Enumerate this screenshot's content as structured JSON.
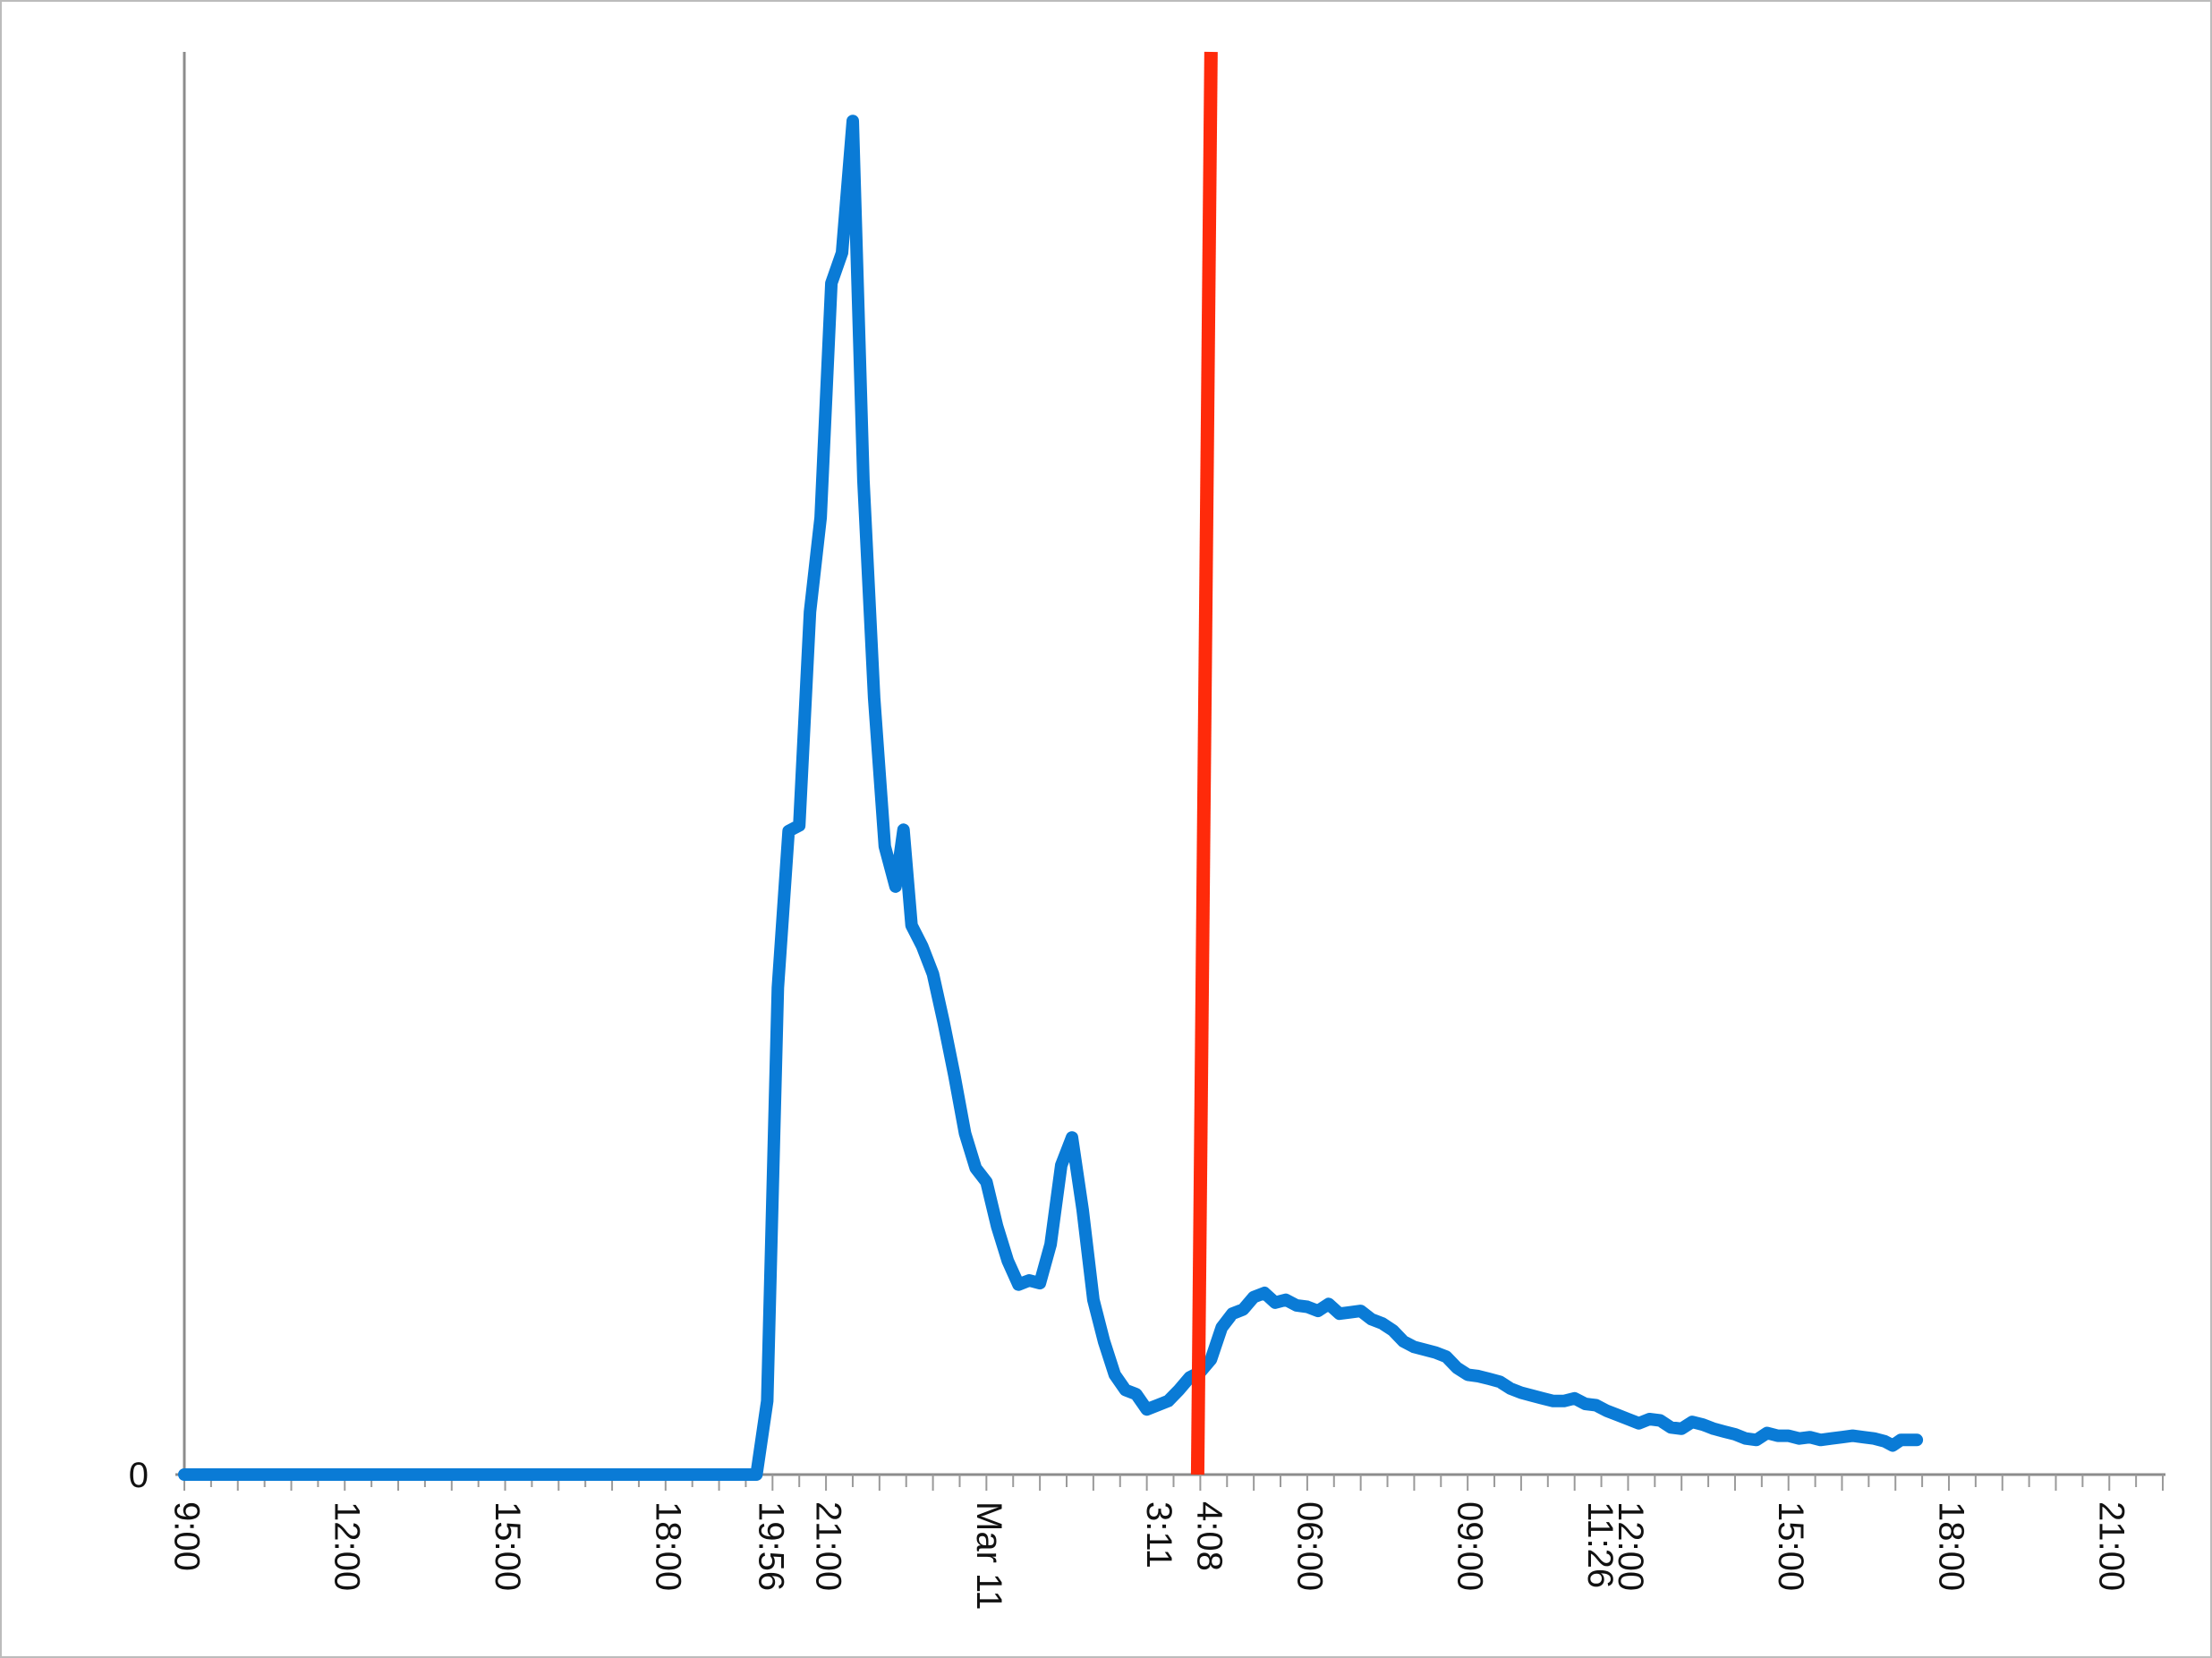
{
  "chart_data": {
    "type": "line",
    "title": "",
    "xlabel": "",
    "ylabel": "",
    "ylim": [
      0,
      100
    ],
    "grid": false,
    "legend": "none",
    "y_tick_labels": [
      "0"
    ],
    "x_tick_labels": [
      {
        "label": "9:00",
        "x": 0
      },
      {
        "label": "12:00",
        "x": 3
      },
      {
        "label": "15:00",
        "x": 6
      },
      {
        "label": "18:00",
        "x": 9
      },
      {
        "label": "19:56",
        "x": 10.93
      },
      {
        "label": "21:00",
        "x": 12
      },
      {
        "label": "Mar 11",
        "x": 15
      },
      {
        "label": "3:11",
        "x": 18.18
      },
      {
        "label": "4:08",
        "x": 19.13
      },
      {
        "label": "06:00",
        "x": 21
      },
      {
        "label": "09:00",
        "x": 24
      },
      {
        "label": "11:26",
        "x": 26.43
      },
      {
        "label": "12:00",
        "x": 27
      },
      {
        "label": "15:00",
        "x": 30
      },
      {
        "label": "18:00",
        "x": 33
      },
      {
        "label": "21:00",
        "x": 36
      }
    ],
    "xlim": [
      0,
      37.05
    ],
    "marker_line": {
      "x_top": 19.2,
      "x_bottom": 18.95,
      "color": "#ff2a0a"
    },
    "series": [
      {
        "color": "#0a7bd6",
        "points": [
          [
            0,
            0
          ],
          [
            10.7,
            0
          ],
          [
            10.9,
            5.3
          ],
          [
            11.1,
            35.1
          ],
          [
            11.3,
            46.4
          ],
          [
            11.5,
            46.8
          ],
          [
            11.7,
            62.2
          ],
          [
            11.9,
            69
          ],
          [
            12.1,
            85.9
          ],
          [
            12.3,
            88.1
          ],
          [
            12.5,
            97.6
          ],
          [
            12.7,
            71.7
          ],
          [
            12.9,
            56
          ],
          [
            13.1,
            45.3
          ],
          [
            13.3,
            42.4
          ],
          [
            13.45,
            46.5
          ],
          [
            13.6,
            39.6
          ],
          [
            13.8,
            38.1
          ],
          [
            14,
            36.1
          ],
          [
            14.2,
            32.6
          ],
          [
            14.4,
            28.8
          ],
          [
            14.6,
            24.6
          ],
          [
            14.8,
            22.1
          ],
          [
            15,
            21.1
          ],
          [
            15.2,
            17.9
          ],
          [
            15.4,
            15.4
          ],
          [
            15.6,
            13.7
          ],
          [
            15.8,
            14
          ],
          [
            16,
            13.8
          ],
          [
            16.2,
            16.6
          ],
          [
            16.4,
            22.3
          ],
          [
            16.6,
            24.3
          ],
          [
            16.8,
            19.1
          ],
          [
            17,
            12.6
          ],
          [
            17.2,
            9.6
          ],
          [
            17.4,
            7.2
          ],
          [
            17.6,
            6.1
          ],
          [
            17.8,
            5.8
          ],
          [
            18,
            4.7
          ],
          [
            18.2,
            5
          ],
          [
            18.4,
            5.3
          ],
          [
            18.6,
            6.1
          ],
          [
            18.8,
            7
          ],
          [
            19,
            7.4
          ],
          [
            19.2,
            8.3
          ],
          [
            19.4,
            10.6
          ],
          [
            19.6,
            11.6
          ],
          [
            19.8,
            11.9
          ],
          [
            20,
            12.8
          ],
          [
            20.2,
            13.1
          ],
          [
            20.4,
            12.4
          ],
          [
            20.6,
            12.6
          ],
          [
            20.8,
            12.2
          ],
          [
            21,
            12.1
          ],
          [
            21.2,
            11.8
          ],
          [
            21.4,
            12.3
          ],
          [
            21.6,
            11.6
          ],
          [
            21.8,
            11.7
          ],
          [
            22,
            11.8
          ],
          [
            22.2,
            11.2
          ],
          [
            22.4,
            10.9
          ],
          [
            22.6,
            10.4
          ],
          [
            22.8,
            9.6
          ],
          [
            23,
            9.2
          ],
          [
            23.2,
            9
          ],
          [
            23.4,
            8.8
          ],
          [
            23.6,
            8.5
          ],
          [
            23.8,
            7.7
          ],
          [
            24,
            7.2
          ],
          [
            24.2,
            7.1
          ],
          [
            24.4,
            6.9
          ],
          [
            24.6,
            6.7
          ],
          [
            24.8,
            6.2
          ],
          [
            25,
            5.9
          ],
          [
            25.2,
            5.7
          ],
          [
            25.4,
            5.5
          ],
          [
            25.6,
            5.3
          ],
          [
            25.8,
            5.3
          ],
          [
            26,
            5.5
          ],
          [
            26.2,
            5.1
          ],
          [
            26.4,
            5
          ],
          [
            26.6,
            4.6
          ],
          [
            26.8,
            4.3
          ],
          [
            27,
            4
          ],
          [
            27.2,
            3.7
          ],
          [
            27.4,
            4
          ],
          [
            27.6,
            3.9
          ],
          [
            27.8,
            3.4
          ],
          [
            28,
            3.3
          ],
          [
            28.2,
            3.8
          ],
          [
            28.4,
            3.6
          ],
          [
            28.6,
            3.3
          ],
          [
            28.8,
            3.1
          ],
          [
            29,
            2.9
          ],
          [
            29.2,
            2.6
          ],
          [
            29.4,
            2.5
          ],
          [
            29.6,
            3
          ],
          [
            29.8,
            2.8
          ],
          [
            30,
            2.8
          ],
          [
            30.2,
            2.6
          ],
          [
            30.4,
            2.7
          ],
          [
            30.6,
            2.5
          ],
          [
            30.8,
            2.6
          ],
          [
            31,
            2.7
          ],
          [
            31.2,
            2.8
          ],
          [
            31.4,
            2.7
          ],
          [
            31.6,
            2.6
          ],
          [
            31.8,
            2.4
          ],
          [
            31.95,
            2.1
          ],
          [
            32.1,
            2.5
          ],
          [
            32.3,
            2.5
          ],
          [
            32.4,
            2.5
          ]
        ]
      }
    ]
  }
}
